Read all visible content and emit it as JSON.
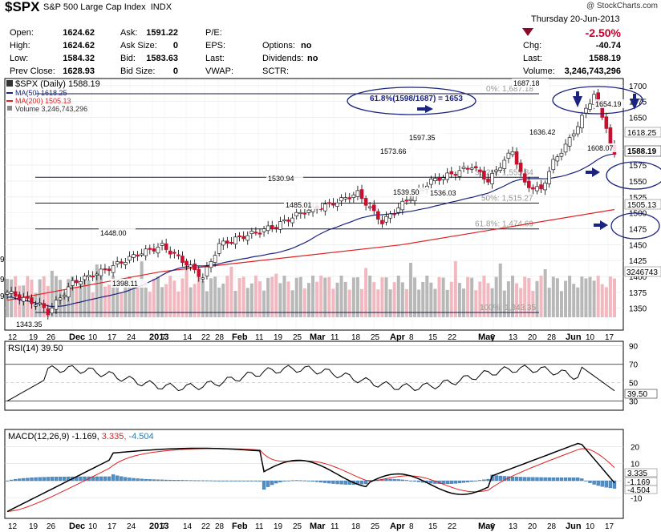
{
  "header": {
    "symbol": "$SPX",
    "name": "S&P 500 Large Cap Index",
    "exchange": "INDX",
    "copyright": "@ StockCharts.com",
    "date": "Thursday   20-Jun-2013",
    "pct_change": "-2.50%",
    "fields": {
      "open_label": "Open:",
      "open": "1624.62",
      "high_label": "High:",
      "high": "1624.62",
      "low_label": "Low:",
      "low": "1584.32",
      "prev_label": "Prev Close:",
      "prev": "1628.93",
      "ask_label": "Ask:",
      "ask": "1591.22",
      "asksize_label": "Ask Size:",
      "asksize": "0",
      "bid_label": "Bid:",
      "bid": "1583.63",
      "bidsize_label": "Bid Size:",
      "bidsize": "0",
      "pe_label": "P/E:",
      "eps_label": "EPS:",
      "last_label": "Last:",
      "vwap_label": "VWAP:",
      "options_label": "Options:",
      "options": "no",
      "dividends_label": "Dividends:",
      "dividends": "no",
      "sctr_label": "SCTR:",
      "chg_label": "Chg:",
      "chg": "-40.74",
      "last2_label": "Last:",
      "last2": "1588.19",
      "volume_label": "Volume:",
      "volume": "3,246,743,296"
    }
  },
  "price_panel": {
    "legend": {
      "main": "$SPX (Daily) 1588.19",
      "ma50": "MA(50) 1618.25",
      "ma200": "MA(200) 1505.13",
      "volume": "Volume 3,246,743,296"
    },
    "right_axis_ticks": [
      "1700",
      "1675",
      "1650",
      "1625",
      "1600",
      "1575",
      "1550",
      "1525",
      "1500",
      "1475",
      "1450",
      "1425",
      "1400",
      "1375",
      "1350"
    ],
    "tag_ma50": "1618.25",
    "tag_close": "1588.19",
    "tag_ma200": "1505.13",
    "tag_volume": "3246743",
    "fib_labels": [
      "0%: 1,687.18",
      "38.2%: 1,555.84",
      "50%: 1,515.27",
      "61.8%: 1,474.69",
      "100%: 1,343.35"
    ],
    "annotations": [
      "1687.18",
      "1654.19",
      "1636.42",
      "1608.07",
      "1597.35",
      "1573.66",
      "1539.50",
      "1536.03",
      "1530.94",
      "1485.01",
      "1448.00",
      "1398.11",
      "1343.35"
    ],
    "callout": "61.8%(1598/1687) = 1653",
    "left_clip_ticks": [
      "9",
      "9",
      "9"
    ]
  },
  "x_axis": {
    "labels": [
      "12",
      "19",
      "26",
      "Dec",
      "10",
      "17",
      "24",
      "2013",
      "7",
      "14",
      "22",
      "28",
      "Feb",
      "11",
      "19",
      "25",
      "Mar",
      "11",
      "18",
      "25",
      "Apr",
      "8",
      "15",
      "22",
      "May",
      "6",
      "13",
      "20",
      "28",
      "Jun",
      "10",
      "17"
    ]
  },
  "rsi_panel": {
    "legend": "RSI(14) 39.50",
    "ticks": [
      "90",
      "70",
      "50",
      "30"
    ],
    "tag": "39.50"
  },
  "macd_panel": {
    "legend_label": "MACD(12,26,9)",
    "legend_macd": "-1.169,",
    "legend_signal": "3.335,",
    "legend_hist": "-4.504",
    "ticks": [
      "20",
      "10",
      "0",
      "-10"
    ],
    "tag_signal": "3.335",
    "tag_macd": "-1.169",
    "tag_hist": "-4.504"
  },
  "colors": {
    "up": "#ffffff",
    "down": "#c8102e",
    "ma50": "#1a237e",
    "ma200": "#e02020",
    "volume_up": "#b8b8b8",
    "volume_down": "#f2b8c0",
    "hist": "#4f8fc8",
    "signal": "#e02020"
  },
  "chart_data": [
    {
      "type": "candlestick",
      "title": "$SPX (Daily)",
      "ylim": [
        1330,
        1705
      ],
      "x_start": "2012-11-12",
      "x_end": "2013-06-20",
      "key_points": [
        {
          "label": "low",
          "value": 1343.35
        },
        {
          "label": "Dec high",
          "value": 1448.0
        },
        {
          "label": "Dec low",
          "value": 1398.11
        },
        {
          "label": "Feb high",
          "value": 1530.94
        },
        {
          "label": "Feb low",
          "value": 1485.01
        },
        {
          "label": "Mar high",
          "value": 1573.66
        },
        {
          "label": "Apr high",
          "value": 1597.35
        },
        {
          "label": "Apr low",
          "value": 1539.5
        },
        {
          "label": "Apr low 2",
          "value": 1536.03
        },
        {
          "label": "May high",
          "value": 1687.18
        },
        {
          "label": "Jun low",
          "value": 1608.07
        },
        {
          "label": "Jun high",
          "value": 1654.19
        },
        {
          "label": "Jun 20 close",
          "value": 1588.19
        }
      ],
      "moving_averages": [
        {
          "name": "MA(50)",
          "last": 1618.25
        },
        {
          "name": "MA(200)",
          "last": 1505.13
        }
      ],
      "fibonacci": [
        {
          "level": "0%",
          "value": 1687.18
        },
        {
          "level": "38.2%",
          "value": 1555.84
        },
        {
          "level": "50%",
          "value": 1515.27
        },
        {
          "level": "61.8%",
          "value": 1474.69
        },
        {
          "level": "100%",
          "value": 1343.35
        }
      ]
    },
    {
      "type": "line",
      "title": "RSI(14)",
      "ylim": [
        20,
        95
      ],
      "last": 39.5
    },
    {
      "type": "line",
      "title": "MACD(12,26,9)",
      "ylim": [
        -22,
        30
      ],
      "last_macd": -1.169,
      "last_signal": 3.335,
      "last_histogram": -4.504
    }
  ]
}
